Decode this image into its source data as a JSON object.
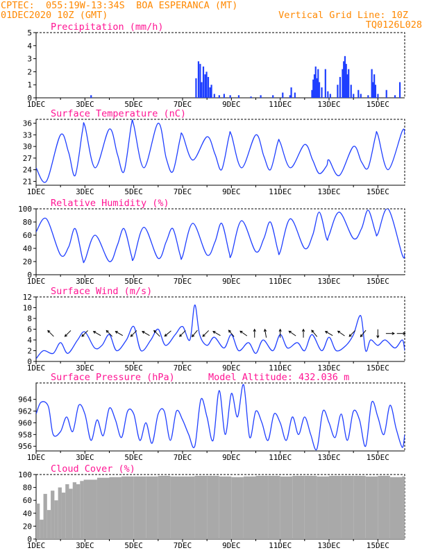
{
  "header": {
    "line1_left": "CPTEC:  055:19W-13:34S  BOA ESPERANCA (MT)",
    "line2_left": "01DEC2020 10Z (GMT)",
    "line2_right": "Vertical Grid Line: 10Z",
    "line3_right": "TQ0126L028",
    "model_altitude": "Model Altitude: 432.036 m"
  },
  "colors": {
    "header": "#ff8800",
    "title": "#ff1493",
    "series": "#1f3fff",
    "arrow": "#000000",
    "cloud": "#a9a9a9",
    "grid": "#000000"
  },
  "x_axis": {
    "tick_labels": [
      "1DEC",
      "3DEC",
      "5DEC",
      "7DEC",
      "9DEC",
      "11DEC",
      "13DEC",
      "15DEC"
    ],
    "tick_days": [
      0,
      2,
      4,
      6,
      8,
      10,
      12,
      14
    ],
    "minor_tick_days": [
      1,
      3,
      5,
      7,
      9,
      11,
      13
    ],
    "range_days": [
      0,
      15.1
    ]
  },
  "chart_data": [
    {
      "type": "bar",
      "title": "Precipitation (mm/h)",
      "ylim": [
        0,
        5
      ],
      "yticks": [
        "0",
        "1",
        "2",
        "3",
        "4",
        "5"
      ],
      "x_days": [
        2.25,
        6.55,
        6.65,
        6.72,
        6.78,
        6.85,
        6.92,
        6.98,
        7.05,
        7.12,
        7.18,
        7.3,
        7.5,
        7.7,
        7.95,
        8.3,
        8.8,
        9.2,
        9.7,
        10.1,
        10.4,
        10.45,
        10.6,
        11.3,
        11.35,
        11.4,
        11.45,
        11.5,
        11.55,
        11.6,
        11.7,
        11.85,
        11.95,
        12.05,
        12.35,
        12.45,
        12.55,
        12.6,
        12.65,
        12.7,
        12.75,
        12.8,
        12.9,
        13.0,
        13.2,
        13.3,
        13.6,
        13.75,
        13.8,
        13.85,
        13.9,
        14.0,
        14.35,
        14.7,
        14.9
      ],
      "values": [
        0.2,
        1.5,
        2.8,
        2.6,
        1.2,
        2.4,
        1.8,
        2.0,
        1.6,
        0.8,
        1.0,
        0.3,
        0.2,
        0.3,
        0.2,
        0.2,
        0.1,
        0.2,
        0.2,
        0.4,
        0.2,
        0.8,
        0.4,
        0.6,
        1.4,
        1.8,
        2.4,
        1.5,
        2.2,
        1.2,
        0.8,
        2.2,
        0.5,
        0.3,
        1.0,
        1.6,
        2.2,
        2.8,
        3.2,
        2.6,
        1.8,
        2.2,
        1.0,
        0.3,
        0.6,
        0.3,
        0.2,
        2.2,
        1.2,
        1.8,
        1.0,
        0.3,
        0.6,
        0.2,
        1.2
      ]
    },
    {
      "type": "line",
      "title": "Surface Temperature (nC)",
      "ylim": [
        20,
        37
      ],
      "yticks": [
        "21",
        "24",
        "27",
        "30",
        "33",
        "36"
      ],
      "x_days": [
        0,
        0.42,
        1.0,
        1.33,
        1.6,
        1.9,
        2.0,
        2.42,
        3.0,
        3.33,
        3.6,
        3.9,
        4.0,
        4.42,
        5.0,
        5.33,
        5.6,
        5.9,
        6.0,
        6.42,
        7.0,
        7.33,
        7.6,
        7.9,
        8.0,
        8.42,
        9.0,
        9.33,
        9.6,
        9.9,
        10.0,
        10.42,
        11.0,
        11.33,
        11.6,
        11.9,
        12.0,
        12.42,
        13.0,
        13.33,
        13.6,
        13.9,
        14.0,
        14.42,
        15.0,
        15.1
      ],
      "values": [
        24.5,
        21.0,
        33.0,
        28.5,
        22.5,
        34.0,
        35.3,
        24.5,
        34.5,
        28.0,
        23.5,
        35.5,
        35.5,
        24.5,
        36.0,
        27.0,
        23.5,
        32.0,
        33.0,
        26.5,
        32.5,
        28.0,
        24.0,
        32.5,
        33.0,
        24.5,
        33.0,
        27.5,
        24.0,
        31.0,
        31.0,
        24.5,
        30.5,
        26.5,
        23.0,
        25.0,
        26.5,
        22.5,
        30.0,
        26.0,
        24.5,
        32.5,
        33.0,
        24.0,
        34.0,
        33.0
      ]
    },
    {
      "type": "line",
      "title": "Relative Humidity (%)",
      "ylim": [
        0,
        100
      ],
      "yticks": [
        "0",
        "20",
        "40",
        "60",
        "80",
        "100"
      ],
      "x_days": [
        0,
        0.42,
        1.0,
        1.33,
        1.6,
        1.9,
        2.0,
        2.42,
        3.0,
        3.33,
        3.6,
        3.9,
        4.0,
        4.42,
        5.0,
        5.33,
        5.6,
        5.9,
        6.0,
        6.42,
        7.0,
        7.33,
        7.6,
        7.9,
        8.0,
        8.42,
        9.0,
        9.33,
        9.6,
        9.9,
        10.0,
        10.42,
        11.0,
        11.33,
        11.6,
        11.9,
        12.0,
        12.42,
        13.0,
        13.33,
        13.6,
        13.9,
        14.0,
        14.42,
        15.0,
        15.1
      ],
      "values": [
        65,
        85,
        30,
        42,
        70,
        25,
        22,
        60,
        20,
        45,
        70,
        30,
        25,
        72,
        25,
        50,
        70,
        30,
        28,
        78,
        30,
        50,
        78,
        35,
        30,
        82,
        35,
        55,
        80,
        38,
        35,
        85,
        40,
        60,
        95,
        55,
        60,
        95,
        55,
        70,
        98,
        65,
        62,
        100,
        30,
        32
      ]
    },
    {
      "type": "line",
      "title": "Surface Wind (m/s)",
      "ylim": [
        0,
        12
      ],
      "yticks": [
        "0",
        "2",
        "4",
        "6",
        "8",
        "10",
        "12"
      ],
      "x_days": [
        0,
        0.3,
        0.7,
        1.0,
        1.3,
        1.7,
        2.0,
        2.4,
        2.7,
        3.0,
        3.3,
        3.7,
        4.0,
        4.3,
        4.7,
        5.0,
        5.3,
        5.7,
        6.0,
        6.3,
        6.5,
        6.7,
        7.0,
        7.3,
        7.7,
        8.0,
        8.3,
        8.7,
        9.0,
        9.3,
        9.7,
        10.0,
        10.3,
        10.7,
        11.0,
        11.3,
        11.7,
        12.0,
        12.3,
        12.7,
        13.0,
        13.3,
        13.5,
        13.7,
        14.0,
        14.3,
        14.7,
        15.0,
        15.1
      ],
      "values": [
        0.5,
        2.0,
        1.5,
        3.5,
        1.5,
        4.0,
        5.5,
        2.5,
        3.0,
        5.0,
        2.0,
        4.0,
        6.5,
        2.0,
        4.0,
        6.0,
        3.0,
        5.0,
        6.5,
        4.0,
        10.5,
        5.0,
        3.0,
        4.5,
        2.5,
        5.0,
        2.0,
        3.5,
        1.5,
        4.0,
        2.0,
        5.0,
        2.5,
        3.5,
        2.0,
        5.0,
        2.0,
        4.5,
        2.0,
        3.0,
        5.0,
        8.5,
        2.0,
        4.0,
        3.0,
        4.0,
        2.5,
        4.0,
        2.0
      ],
      "arrow_days": [
        0.6,
        1.3,
        2.0,
        2.5,
        3.0,
        3.4,
        4.0,
        4.5,
        4.95,
        5.4,
        6.0,
        6.5,
        6.95,
        7.4,
        8.0,
        8.5,
        8.95,
        9.4,
        10.0,
        10.5,
        10.95,
        11.4,
        12.0,
        12.5,
        12.95,
        13.4,
        14.0,
        14.5,
        14.95
      ],
      "arrow_dir_deg": [
        315,
        225,
        225,
        300,
        315,
        300,
        225,
        300,
        315,
        230,
        225,
        220,
        225,
        300,
        320,
        305,
        0,
        350,
        0,
        305,
        0,
        320,
        300,
        305,
        225,
        220,
        180,
        90,
        90
      ]
    },
    {
      "type": "line",
      "title": "Surface Pressure (hPa)",
      "ylim": [
        955.2,
        966.8
      ],
      "yticks": [
        "956",
        "958",
        "960",
        "962",
        "964"
      ],
      "x_days": [
        0,
        0.2,
        0.5,
        0.7,
        1.0,
        1.25,
        1.5,
        1.75,
        2.0,
        2.25,
        2.5,
        2.75,
        3.0,
        3.25,
        3.5,
        3.75,
        4.0,
        4.25,
        4.5,
        4.75,
        5.0,
        5.25,
        5.5,
        5.75,
        6.0,
        6.25,
        6.5,
        6.75,
        7.0,
        7.25,
        7.5,
        7.75,
        8.0,
        8.25,
        8.5,
        8.75,
        9.0,
        9.25,
        9.5,
        9.75,
        10.0,
        10.25,
        10.5,
        10.75,
        11.0,
        11.25,
        11.5,
        11.75,
        12.0,
        12.25,
        12.5,
        12.75,
        13.0,
        13.25,
        13.5,
        13.75,
        14.0,
        14.25,
        14.5,
        14.75,
        15.0,
        15.1
      ],
      "values": [
        961.5,
        963.5,
        962.8,
        958.0,
        958.5,
        961.0,
        958.5,
        963.0,
        961.5,
        957.0,
        960.5,
        957.8,
        962.5,
        960.5,
        957.5,
        962.0,
        961.5,
        957.0,
        960.0,
        956.5,
        961.5,
        962.0,
        957.0,
        962.0,
        960.5,
        958.0,
        956.0,
        964.0,
        961.0,
        957.0,
        965.5,
        958.0,
        965.0,
        961.0,
        966.5,
        957.5,
        962.0,
        960.0,
        957.0,
        961.5,
        960.0,
        957.0,
        961.0,
        958.0,
        961.0,
        958.0,
        955.5,
        962.0,
        960.0,
        957.5,
        961.5,
        957.0,
        962.0,
        960.5,
        956.0,
        963.5,
        961.0,
        958.0,
        963.0,
        959.0,
        955.8,
        958.0
      ]
    },
    {
      "type": "bar",
      "title": "Cloud Cover (%)",
      "ylim": [
        0,
        100
      ],
      "yticks": [
        "0",
        "20",
        "40",
        "60",
        "80",
        "100"
      ],
      "x_days": [
        0,
        0.15,
        0.3,
        0.45,
        0.6,
        0.75,
        0.9,
        1.05,
        1.2,
        1.35,
        1.5,
        1.65,
        1.8,
        1.95,
        2.5,
        3.0,
        3.5,
        4.0,
        4.5,
        5.0,
        5.5,
        6.0,
        6.5,
        7.0,
        7.5,
        8.0,
        8.5,
        9.0,
        9.5,
        10.0,
        10.5,
        11.0,
        11.5,
        12.0,
        12.5,
        13.0,
        13.5,
        14.0,
        14.5,
        15.0
      ],
      "values": [
        55,
        30,
        70,
        45,
        75,
        60,
        80,
        72,
        85,
        78,
        88,
        85,
        90,
        92,
        95,
        96,
        97,
        97,
        97,
        98,
        97,
        97,
        98,
        98,
        97,
        96,
        97,
        98,
        98,
        97,
        98,
        98,
        97,
        98,
        98,
        98,
        97,
        98,
        96,
        97
      ]
    }
  ]
}
